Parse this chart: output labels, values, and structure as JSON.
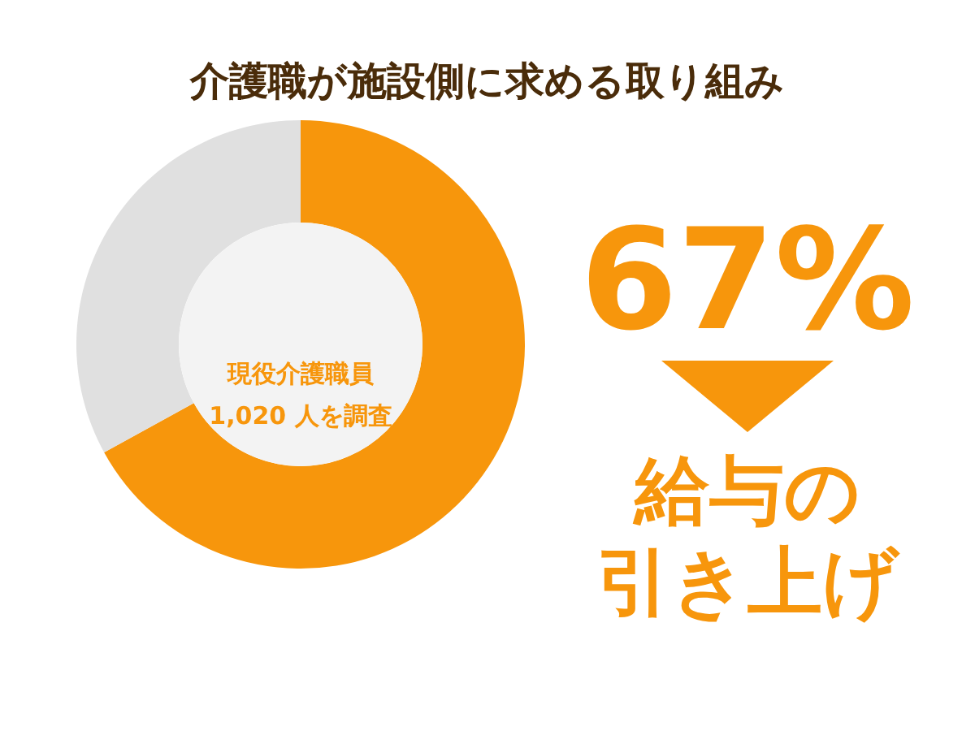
{
  "chart_data": {
    "type": "donut",
    "title": "介護職が施設側に求める取り組み",
    "categories": [
      "給与の引き上げ",
      null
    ],
    "values": [
      67,
      33
    ],
    "colors": [
      "#f7960c",
      "#e0e0e0"
    ],
    "value_labels": [
      "67%",
      null
    ],
    "annotations": [
      "現役介護職員\n1,020 人を調査"
    ]
  }
}
